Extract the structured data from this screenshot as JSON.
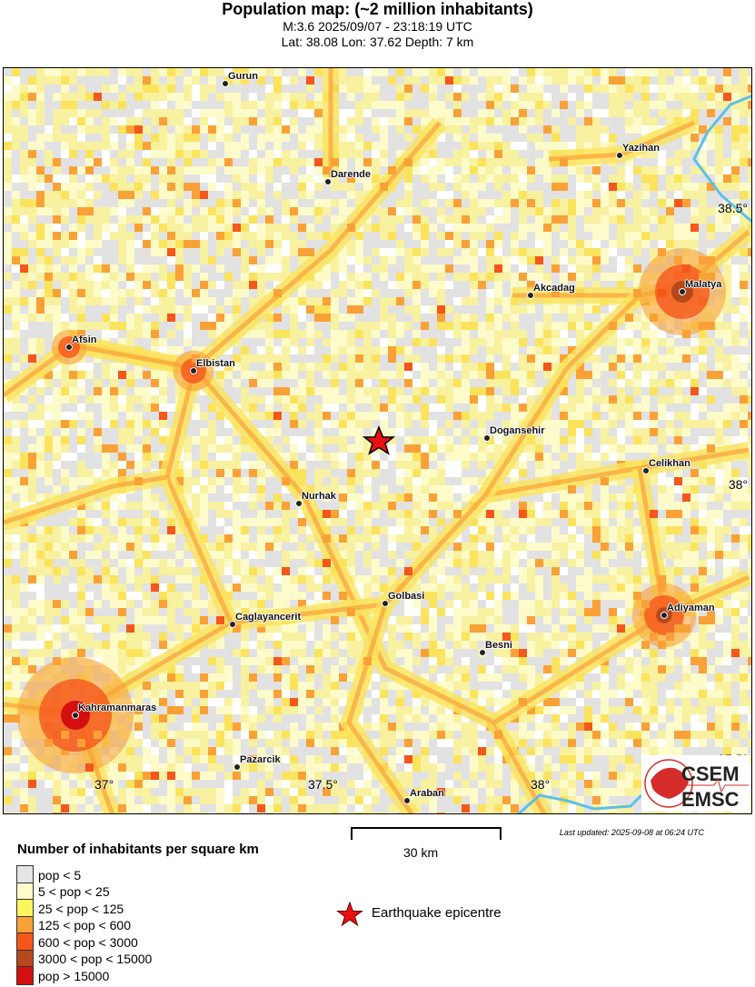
{
  "header": {
    "title": "Population map: (~2 million inhabitants)",
    "line1": "M:3.6 2025/09/07 - 23:18:19 UTC",
    "line2": "Lat: 38.08 Lon: 37.62 Depth: 7 km"
  },
  "map": {
    "lat_ticks": [
      "38.5°",
      "38°",
      "37.5°"
    ],
    "lon_ticks": [
      "37°",
      "37.5°",
      "38°"
    ],
    "cities": [
      "Gurun",
      "Darende",
      "Yazihan",
      "Malatya",
      "Akcadag",
      "Afsin",
      "Elbistan",
      "Dogansehir",
      "Celikhan",
      "Nurhak",
      "Golbasi",
      "Adiyaman",
      "Caglayancerit",
      "Besni",
      "Kahramanmaras",
      "Pazarcik",
      "Araban"
    ],
    "epicentre_icon": "red-star-icon",
    "river_color": "#5bc0eb",
    "logo": "CSEM EMSC"
  },
  "scale": {
    "label": "30 km"
  },
  "updated": "Last updated: 2025-09-08 at 06:24 UTC",
  "legend": {
    "title": "Number of inhabitants per square km",
    "items": [
      {
        "label": "pop < 5",
        "color": "#e5e5e5"
      },
      {
        "label": "5 < pop < 25",
        "color": "#fdfbc9"
      },
      {
        "label": "25 < pop < 125",
        "color": "#fbf65c"
      },
      {
        "label": "125 < pop < 600",
        "color": "#f9a137"
      },
      {
        "label": "600 < pop < 3000",
        "color": "#f5561b"
      },
      {
        "label": "3000 < pop < 15000",
        "color": "#b5491c"
      },
      {
        "label": "pop > 15000",
        "color": "#d40f0f"
      }
    ],
    "epicentre_label": "Earthquake epicentre"
  }
}
